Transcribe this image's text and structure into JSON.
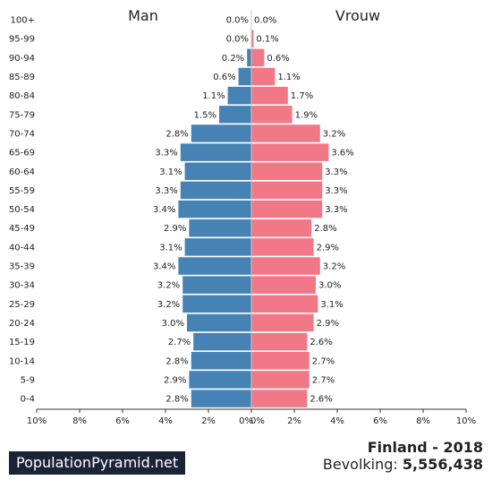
{
  "chart_data": {
    "type": "bar",
    "title": "Finland - 2018",
    "age_groups": [
      "100+",
      "95-99",
      "90-94",
      "85-89",
      "80-84",
      "75-79",
      "70-74",
      "65-69",
      "60-64",
      "55-59",
      "50-54",
      "45-49",
      "40-44",
      "35-39",
      "30-34",
      "25-29",
      "20-24",
      "15-19",
      "10-14",
      "5-9",
      "0-4"
    ],
    "series": [
      {
        "name": "Man",
        "side": "left",
        "color": "#4682b4",
        "values": [
          0.0,
          0.0,
          0.2,
          0.6,
          1.1,
          1.5,
          2.8,
          3.3,
          3.1,
          3.3,
          3.4,
          2.9,
          3.1,
          3.4,
          3.2,
          3.2,
          3.0,
          2.7,
          2.8,
          2.9,
          2.8
        ],
        "labels": [
          "0.0%",
          "0.0%",
          "0.2%",
          "0.6%",
          "1.1%",
          "1.5%",
          "2.8%",
          "3.3%",
          "3.1%",
          "3.3%",
          "3.4%",
          "2.9%",
          "3.1%",
          "3.4%",
          "3.2%",
          "3.2%",
          "3.0%",
          "2.7%",
          "2.8%",
          "2.9%",
          "2.8%"
        ]
      },
      {
        "name": "Vrouw",
        "side": "right",
        "color": "#f07887",
        "values": [
          0.0,
          0.1,
          0.6,
          1.1,
          1.7,
          1.9,
          3.2,
          3.6,
          3.3,
          3.3,
          3.3,
          2.8,
          2.9,
          3.2,
          3.0,
          3.1,
          2.9,
          2.6,
          2.7,
          2.7,
          2.6
        ],
        "labels": [
          "0.0%",
          "0.1%",
          "0.6%",
          "1.1%",
          "1.7%",
          "1.9%",
          "3.2%",
          "3.6%",
          "3.3%",
          "3.3%",
          "3.3%",
          "2.8%",
          "2.9%",
          "3.2%",
          "3.0%",
          "3.1%",
          "2.9%",
          "2.6%",
          "2.7%",
          "2.7%",
          "2.6%"
        ]
      }
    ],
    "x_ticks": [
      "10%",
      "8%",
      "6%",
      "4%",
      "2%",
      "0%",
      "0%",
      "2%",
      "4%",
      "6%",
      "8%",
      "10%"
    ],
    "xlim": [
      0,
      10
    ],
    "grid": false
  },
  "footer": {
    "brand": "PopulationPyramid.net",
    "country": "Finland - 2018",
    "population_label": "Bevolking:",
    "population_value": "5,556,438"
  }
}
